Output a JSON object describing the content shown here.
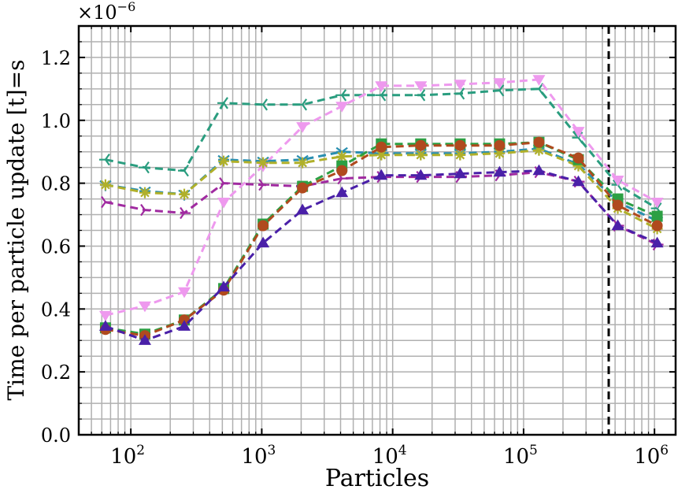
{
  "chart_data": {
    "type": "line",
    "xlabel": "Particles",
    "ylabel": "Time per particle update [t]=s",
    "y_offset_text": "×10",
    "y_offset_exp": "−6",
    "xscale": "log",
    "xlim": [
      40,
      1450000
    ],
    "ylim": [
      0.0,
      1.3
    ],
    "grid": true,
    "x_tick_labels": [
      {
        "base": "10",
        "exp": "2",
        "value": 100
      },
      {
        "base": "10",
        "exp": "3",
        "value": 1000
      },
      {
        "base": "10",
        "exp": "4",
        "value": 10000
      },
      {
        "base": "10",
        "exp": "5",
        "value": 100000
      },
      {
        "base": "10",
        "exp": "6",
        "value": 1000000
      }
    ],
    "y_tick_labels": [
      "0.0",
      "0.2",
      "0.4",
      "0.6",
      "0.8",
      "1.0",
      "1.2"
    ],
    "vertical_line": {
      "x": 447000,
      "style": "dashed",
      "color": "#000000"
    },
    "x": [
      64,
      128,
      256,
      512,
      1024,
      2048,
      4096,
      8192,
      16384,
      32768,
      65536,
      131072,
      262144,
      524288,
      1048576
    ],
    "series": [
      {
        "color": "#2a9d7f",
        "marker": "tri-right",
        "values": [
          0.875,
          0.85,
          0.84,
          1.055,
          1.05,
          1.05,
          1.08,
          1.08,
          1.08,
          1.085,
          1.095,
          1.1,
          0.945,
          0.795,
          0.72
        ]
      },
      {
        "color": "#ee99ee",
        "marker": "triangle-down",
        "values": [
          0.38,
          0.41,
          0.455,
          0.74,
          0.855,
          0.98,
          1.045,
          1.11,
          1.11,
          1.115,
          1.12,
          1.13,
          0.965,
          0.81,
          0.74
        ]
      },
      {
        "color": "#2a8fb0",
        "marker": "tri-down",
        "values": [
          0.795,
          0.775,
          0.765,
          0.875,
          0.87,
          0.875,
          0.9,
          0.895,
          0.895,
          0.895,
          0.9,
          0.91,
          0.86,
          0.74,
          0.68
        ]
      },
      {
        "color": "#b0b02a",
        "marker": "star",
        "values": [
          0.795,
          0.77,
          0.765,
          0.87,
          0.865,
          0.865,
          0.885,
          0.89,
          0.89,
          0.89,
          0.895,
          0.905,
          0.855,
          0.72,
          0.655
        ]
      },
      {
        "color": "#a02aa0",
        "marker": "tri-left",
        "values": [
          0.74,
          0.715,
          0.705,
          0.8,
          0.795,
          0.79,
          0.815,
          0.82,
          0.82,
          0.82,
          0.825,
          0.835,
          0.805,
          0.665,
          0.605
        ]
      },
      {
        "color": "#2ca044",
        "marker": "square",
        "values": [
          0.34,
          0.32,
          0.365,
          0.465,
          0.67,
          0.79,
          0.855,
          0.925,
          0.925,
          0.925,
          0.925,
          0.93,
          0.875,
          0.75,
          0.695
        ]
      },
      {
        "color": "#b04a1e",
        "marker": "circle",
        "values": [
          0.335,
          0.315,
          0.365,
          0.46,
          0.665,
          0.785,
          0.84,
          0.915,
          0.92,
          0.92,
          0.92,
          0.93,
          0.88,
          0.73,
          0.665
        ]
      },
      {
        "color": "#4a20a8",
        "marker": "triangle-up",
        "values": [
          0.345,
          0.3,
          0.345,
          0.47,
          0.61,
          0.715,
          0.77,
          0.825,
          0.825,
          0.83,
          0.835,
          0.84,
          0.805,
          0.665,
          0.61
        ]
      }
    ]
  }
}
